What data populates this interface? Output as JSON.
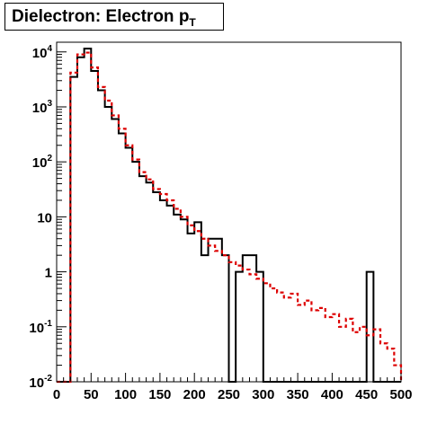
{
  "chart_data": {
    "type": "histogram",
    "title_main": "Dielectron: Electron p",
    "title_sub": "T",
    "xlabel": "",
    "ylabel": "",
    "xlim": [
      0,
      500
    ],
    "ylim": [
      0.01,
      15000
    ],
    "yscale": "log",
    "bin_width": 10,
    "bin_edges_start": 0,
    "x_ticks": [
      "0",
      "50",
      "100",
      "150",
      "200",
      "250",
      "300",
      "350",
      "400",
      "450",
      "500"
    ],
    "y_ticks": [
      {
        "base": "10",
        "exp": "-2",
        "value": 0.01
      },
      {
        "base": "10",
        "exp": "-1",
        "value": 0.1
      },
      {
        "base": "1",
        "exp": "",
        "value": 1
      },
      {
        "base": "10",
        "exp": "",
        "value": 10
      },
      {
        "base": "10",
        "exp": "2",
        "value": 100
      },
      {
        "base": "10",
        "exp": "3",
        "value": 1000
      },
      {
        "base": "10",
        "exp": "4",
        "value": 10000
      }
    ],
    "series": [
      {
        "style": "solid",
        "color": "#000000",
        "values": [
          0,
          0,
          3500,
          8000,
          11500,
          4500,
          2000,
          1000,
          600,
          330,
          180,
          100,
          55,
          42,
          28,
          20,
          16,
          11,
          9,
          5,
          8,
          2,
          4,
          4,
          2,
          0,
          1,
          2,
          2,
          1,
          0,
          0,
          0,
          0,
          0,
          0,
          0,
          0,
          0,
          0,
          0,
          0,
          0,
          0,
          0,
          1,
          0,
          0,
          0,
          0
        ]
      },
      {
        "style": "dashed",
        "color": "#dd0000",
        "values": [
          0,
          0,
          4200,
          9000,
          9700,
          5200,
          2300,
          1300,
          700,
          400,
          200,
          110,
          65,
          48,
          32,
          26,
          20,
          14,
          10,
          7,
          5.5,
          4,
          3,
          2.4,
          2,
          1.5,
          1.3,
          1.1,
          0.9,
          0.75,
          0.62,
          0.5,
          0.42,
          0.34,
          0.4,
          0.25,
          0.3,
          0.2,
          0.22,
          0.15,
          0.17,
          0.1,
          0.14,
          0.08,
          0.1,
          0.07,
          0.09,
          0.05,
          0.04,
          0.02
        ]
      }
    ]
  }
}
